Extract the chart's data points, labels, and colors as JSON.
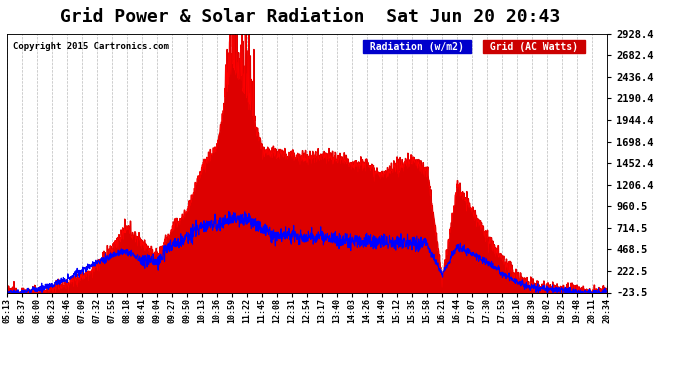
{
  "title": "Grid Power & Solar Radiation  Sat Jun 20 20:43",
  "copyright": "Copyright 2015 Cartronics.com",
  "bg_color": "#ffffff",
  "plot_bg_color": "#ffffff",
  "grid_color": "#aaaaaa",
  "yticks": [
    -23.5,
    222.5,
    468.5,
    714.5,
    960.5,
    1206.4,
    1452.4,
    1698.4,
    1944.4,
    2190.4,
    2436.4,
    2682.4,
    2928.4
  ],
  "ylim": [
    -23.5,
    2928.4
  ],
  "xtick_labels": [
    "05:13",
    "05:37",
    "06:00",
    "06:23",
    "06:46",
    "07:09",
    "07:32",
    "07:55",
    "08:18",
    "08:41",
    "09:04",
    "09:27",
    "09:50",
    "10:13",
    "10:36",
    "10:59",
    "11:22",
    "11:45",
    "12:08",
    "12:31",
    "12:54",
    "13:17",
    "13:40",
    "14:03",
    "14:26",
    "14:49",
    "15:12",
    "15:35",
    "15:58",
    "16:21",
    "16:44",
    "17:07",
    "17:30",
    "17:53",
    "18:16",
    "18:39",
    "19:02",
    "19:25",
    "19:48",
    "20:11",
    "20:34"
  ],
  "legend_radiation_bg": "#0000cc",
  "legend_grid_bg": "#cc0000",
  "legend_text_color": "#ffffff",
  "radiation_line_color": "#0000ff",
  "grid_fill_color": "#dd0000",
  "grid_line_color": "#ff0000",
  "title_color": "#000000",
  "title_fontsize": 13,
  "copyright_color": "#000000",
  "ytick_color": "#000000",
  "xtick_color": "#000000",
  "spine_color": "#000000"
}
